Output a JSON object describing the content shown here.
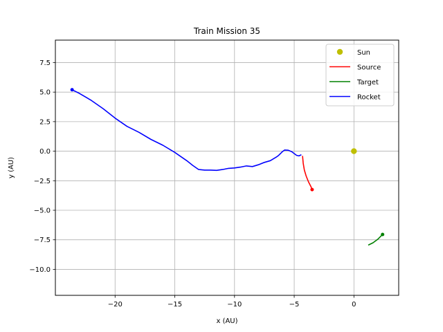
{
  "chart_data": {
    "type": "line",
    "title": "Train Mission 35",
    "xlabel": "x (AU)",
    "ylabel": "y (AU)",
    "xlim": [
      -25.0,
      3.75
    ],
    "ylim": [
      -12.2,
      9.4
    ],
    "xticks": [
      -20,
      -15,
      -10,
      -5,
      0
    ],
    "xtick_labels": [
      "−20",
      "−15",
      "−10",
      "−5",
      "0"
    ],
    "yticks": [
      7.5,
      5.0,
      2.5,
      0.0,
      -2.5,
      -5.0,
      -7.5,
      -10.0
    ],
    "ytick_labels": [
      "7.5",
      "5.0",
      "2.5",
      "0.0",
      "−2.5",
      "−5.0",
      "−7.5",
      "−10.0"
    ],
    "grid": true,
    "legend_position": "top-right",
    "series": [
      {
        "name": "Sun",
        "kind": "marker",
        "color": "#bfbf00",
        "x": [
          0.0
        ],
        "y": [
          0.0
        ]
      },
      {
        "name": "Source",
        "kind": "line",
        "color": "#ff0000",
        "end_marker": true,
        "x": [
          -4.3,
          -4.25,
          -4.15,
          -4.0,
          -3.8,
          -3.6,
          -3.5
        ],
        "y": [
          -0.4,
          -1.0,
          -1.6,
          -2.1,
          -2.6,
          -3.0,
          -3.25
        ]
      },
      {
        "name": "Target",
        "kind": "line",
        "color": "#008000",
        "end_marker": true,
        "x": [
          1.2,
          1.6,
          2.0,
          2.25,
          2.4
        ],
        "y": [
          -7.95,
          -7.75,
          -7.45,
          -7.2,
          -7.05
        ]
      },
      {
        "name": "Rocket",
        "kind": "line",
        "color": "#0000ff",
        "start_marker": true,
        "x": [
          -23.6,
          -23.0,
          -22.0,
          -21.0,
          -20.0,
          -19.0,
          -18.0,
          -17.0,
          -16.0,
          -15.0,
          -14.0,
          -13.5,
          -13.0,
          -12.5,
          -12.0,
          -11.5,
          -11.0,
          -10.5,
          -10.0,
          -9.5,
          -9.0,
          -8.5,
          -8.0,
          -7.5,
          -7.0,
          -6.5,
          -6.3,
          -6.0,
          -5.8,
          -5.5,
          -5.2,
          -5.0,
          -4.8,
          -4.6,
          -4.4
        ],
        "y": [
          5.2,
          4.9,
          4.3,
          3.6,
          2.8,
          2.1,
          1.6,
          1.0,
          0.5,
          -0.1,
          -0.8,
          -1.2,
          -1.55,
          -1.6,
          -1.6,
          -1.62,
          -1.55,
          -1.45,
          -1.42,
          -1.35,
          -1.25,
          -1.3,
          -1.15,
          -0.95,
          -0.8,
          -0.5,
          -0.35,
          -0.05,
          0.1,
          0.08,
          -0.05,
          -0.2,
          -0.35,
          -0.4,
          -0.3
        ]
      }
    ]
  }
}
